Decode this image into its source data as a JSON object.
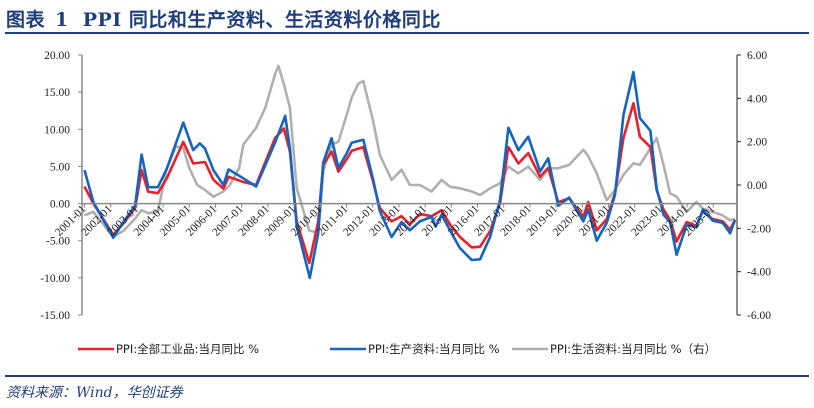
{
  "title": {
    "prefix": "图表",
    "number": "1",
    "text": "PPI 同比和生产资料、生活资料价格同比"
  },
  "source": "资料来源：Wind，华创证券",
  "colors": {
    "accent": "#1f3f7a",
    "red": "#e8202a",
    "blue": "#1565c0",
    "gray": "#b0b0b0"
  },
  "chart_data": {
    "type": "line",
    "title": "PPI 同比和生产资料、生活资料价格同比",
    "x_tick_labels": [
      "2001-01",
      "2002-01",
      "2003-01",
      "2004-01",
      "2005-01",
      "2006-01",
      "2007-01",
      "2008-01",
      "2009-01",
      "2010-01",
      "2011-01",
      "2012-01",
      "2013-01",
      "2014-01",
      "2015-01",
      "2016-01",
      "2017-01",
      "2018-01",
      "2019-01",
      "2020-01",
      "2021-01",
      "2022-01",
      "2023-01",
      "2024-01",
      "2025-01"
    ],
    "x_range": [
      2001.0,
      2025.85
    ],
    "y_left": {
      "range": [
        -15,
        20
      ],
      "ticks": [
        "20.00",
        "15.00",
        "10.00",
        "5.00",
        "0.00",
        "-5.00",
        "-10.00",
        "-15.00"
      ]
    },
    "y_right": {
      "range": [
        -6,
        6
      ],
      "ticks": [
        "6.00",
        "4.00",
        "2.00",
        "0.00",
        "-2.00",
        "-4.00",
        "-6.00"
      ]
    },
    "grid": false,
    "legend_position": "bottom",
    "series": [
      {
        "name": "PPI:全部工业品:当月同比 %",
        "axis": "left",
        "color": "#e8202a",
        "points": [
          [
            2001.0,
            2.3
          ],
          [
            2001.34,
            0.0
          ],
          [
            2002.1,
            -4.2
          ],
          [
            2002.5,
            -2.6
          ],
          [
            2002.93,
            -0.6
          ],
          [
            2003.18,
            4.5
          ],
          [
            2003.43,
            1.6
          ],
          [
            2003.8,
            1.4
          ],
          [
            2004.14,
            3.4
          ],
          [
            2004.77,
            8.3
          ],
          [
            2005.15,
            5.4
          ],
          [
            2005.6,
            5.6
          ],
          [
            2005.92,
            3.2
          ],
          [
            2006.3,
            2.0
          ],
          [
            2006.5,
            3.6
          ],
          [
            2007.06,
            2.9
          ],
          [
            2007.55,
            2.5
          ],
          [
            2008.27,
            8.8
          ],
          [
            2008.61,
            10.1
          ],
          [
            2008.84,
            7.0
          ],
          [
            2009.1,
            -2.4
          ],
          [
            2009.58,
            -8.0
          ],
          [
            2009.92,
            -2.4
          ],
          [
            2010.11,
            5.2
          ],
          [
            2010.43,
            7.0
          ],
          [
            2010.69,
            4.3
          ],
          [
            2011.01,
            6.0
          ],
          [
            2011.2,
            7.1
          ],
          [
            2011.64,
            7.6
          ],
          [
            2012.02,
            2.9
          ],
          [
            2012.27,
            -0.6
          ],
          [
            2012.72,
            -2.4
          ],
          [
            2013.1,
            -1.7
          ],
          [
            2013.42,
            -2.8
          ],
          [
            2013.8,
            -1.4
          ],
          [
            2014.25,
            -1.7
          ],
          [
            2014.63,
            -0.9
          ],
          [
            2014.95,
            -2.8
          ],
          [
            2015.33,
            -4.5
          ],
          [
            2015.78,
            -5.9
          ],
          [
            2016.1,
            -5.8
          ],
          [
            2016.48,
            -3.7
          ],
          [
            2016.86,
            0.0
          ],
          [
            2017.18,
            7.6
          ],
          [
            2017.56,
            5.4
          ],
          [
            2017.94,
            6.8
          ],
          [
            2018.39,
            3.6
          ],
          [
            2018.7,
            4.8
          ],
          [
            2019.08,
            0.2
          ],
          [
            2019.5,
            0.7
          ],
          [
            2020.04,
            -1.8
          ],
          [
            2020.23,
            0.2
          ],
          [
            2020.55,
            -3.6
          ],
          [
            2020.93,
            -2.1
          ],
          [
            2021.25,
            1.4
          ],
          [
            2021.57,
            8.8
          ],
          [
            2021.95,
            13.5
          ],
          [
            2022.2,
            9.0
          ],
          [
            2022.6,
            7.6
          ],
          [
            2022.84,
            1.8
          ],
          [
            2023.1,
            -0.8
          ],
          [
            2023.35,
            -2.2
          ],
          [
            2023.6,
            -5.1
          ],
          [
            2023.98,
            -2.5
          ],
          [
            2024.36,
            -3.0
          ],
          [
            2024.6,
            -1.0
          ],
          [
            2024.98,
            -2.1
          ],
          [
            2025.36,
            -2.4
          ],
          [
            2025.64,
            -3.5
          ],
          [
            2025.83,
            -2.2
          ]
        ]
      },
      {
        "name": "PPI:生产资料:当月同比 %",
        "axis": "left",
        "color": "#1565c0",
        "points": [
          [
            2001.0,
            4.5
          ],
          [
            2001.34,
            0.2
          ],
          [
            2002.1,
            -4.6
          ],
          [
            2002.5,
            -2.4
          ],
          [
            2002.93,
            -0.3
          ],
          [
            2003.18,
            6.6
          ],
          [
            2003.43,
            2.2
          ],
          [
            2003.8,
            2.2
          ],
          [
            2004.14,
            4.7
          ],
          [
            2004.77,
            10.9
          ],
          [
            2005.15,
            7.2
          ],
          [
            2005.4,
            8.1
          ],
          [
            2005.6,
            7.4
          ],
          [
            2005.92,
            4.5
          ],
          [
            2006.3,
            2.5
          ],
          [
            2006.5,
            4.6
          ],
          [
            2007.06,
            3.4
          ],
          [
            2007.55,
            2.3
          ],
          [
            2008.27,
            8.2
          ],
          [
            2008.66,
            11.8
          ],
          [
            2008.84,
            7.5
          ],
          [
            2009.1,
            -3.0
          ],
          [
            2009.6,
            -10.0
          ],
          [
            2009.92,
            -4.0
          ],
          [
            2010.11,
            5.5
          ],
          [
            2010.43,
            8.8
          ],
          [
            2010.69,
            4.8
          ],
          [
            2011.01,
            6.8
          ],
          [
            2011.2,
            8.2
          ],
          [
            2011.64,
            8.6
          ],
          [
            2012.02,
            3.2
          ],
          [
            2012.27,
            -1.0
          ],
          [
            2012.72,
            -4.5
          ],
          [
            2013.1,
            -2.5
          ],
          [
            2013.42,
            -3.6
          ],
          [
            2013.8,
            -2.4
          ],
          [
            2014.25,
            -1.8
          ],
          [
            2014.4,
            -3.1
          ],
          [
            2014.63,
            -1.5
          ],
          [
            2014.95,
            -3.6
          ],
          [
            2015.33,
            -6.0
          ],
          [
            2015.78,
            -7.6
          ],
          [
            2016.1,
            -7.5
          ],
          [
            2016.48,
            -4.5
          ],
          [
            2016.86,
            0.5
          ],
          [
            2017.18,
            10.2
          ],
          [
            2017.56,
            7.2
          ],
          [
            2017.94,
            9.0
          ],
          [
            2018.39,
            4.3
          ],
          [
            2018.7,
            6.1
          ],
          [
            2019.08,
            -0.3
          ],
          [
            2019.5,
            0.8
          ],
          [
            2020.04,
            -2.4
          ],
          [
            2020.23,
            -0.8
          ],
          [
            2020.55,
            -5.0
          ],
          [
            2020.93,
            -2.6
          ],
          [
            2021.25,
            1.2
          ],
          [
            2021.57,
            11.9
          ],
          [
            2021.95,
            17.7
          ],
          [
            2022.2,
            11.5
          ],
          [
            2022.6,
            9.8
          ],
          [
            2022.84,
            2.0
          ],
          [
            2023.1,
            -1.5
          ],
          [
            2023.35,
            -2.5
          ],
          [
            2023.6,
            -6.9
          ],
          [
            2023.98,
            -2.9
          ],
          [
            2024.36,
            -3.2
          ],
          [
            2024.6,
            -0.8
          ],
          [
            2024.98,
            -2.3
          ],
          [
            2025.36,
            -2.6
          ],
          [
            2025.64,
            -4.0
          ],
          [
            2025.83,
            -2.2
          ]
        ]
      },
      {
        "name": "PPI:生活资料:当月同比 %（右）",
        "axis": "right",
        "color": "#b0b0b0",
        "points": [
          [
            2001.0,
            -1.4
          ],
          [
            2001.34,
            -1.24
          ],
          [
            2002.1,
            -2.4
          ],
          [
            2002.5,
            -2.1
          ],
          [
            2002.93,
            -1.55
          ],
          [
            2003.18,
            -1.16
          ],
          [
            2003.43,
            -1.3
          ],
          [
            2003.8,
            -1.24
          ],
          [
            2004.14,
            0.78
          ],
          [
            2004.5,
            1.78
          ],
          [
            2004.77,
            1.7
          ],
          [
            2005.0,
            0.78
          ],
          [
            2005.3,
            0.0
          ],
          [
            2005.6,
            -0.23
          ],
          [
            2005.92,
            -0.54
          ],
          [
            2006.3,
            -0.3
          ],
          [
            2006.55,
            0.0
          ],
          [
            2006.9,
            0.78
          ],
          [
            2007.06,
            1.86
          ],
          [
            2007.55,
            2.64
          ],
          [
            2007.9,
            3.57
          ],
          [
            2008.27,
            5.1
          ],
          [
            2008.4,
            5.5
          ],
          [
            2008.61,
            4.65
          ],
          [
            2008.84,
            3.57
          ],
          [
            2009.1,
            -0.15
          ],
          [
            2009.58,
            -2.1
          ],
          [
            2009.92,
            -2.2
          ],
          [
            2010.11,
            0.62
          ],
          [
            2010.43,
            1.86
          ],
          [
            2010.69,
            2.0
          ],
          [
            2011.01,
            3.26
          ],
          [
            2011.2,
            4.03
          ],
          [
            2011.45,
            4.68
          ],
          [
            2011.64,
            4.8
          ],
          [
            2012.02,
            2.94
          ],
          [
            2012.27,
            1.4
          ],
          [
            2012.72,
            0.23
          ],
          [
            2013.1,
            0.7
          ],
          [
            2013.42,
            0.0
          ],
          [
            2013.8,
            0.0
          ],
          [
            2014.25,
            -0.3
          ],
          [
            2014.63,
            0.23
          ],
          [
            2014.95,
            -0.08
          ],
          [
            2015.33,
            -0.15
          ],
          [
            2015.78,
            -0.3
          ],
          [
            2016.1,
            -0.46
          ],
          [
            2016.48,
            -0.15
          ],
          [
            2016.86,
            0.08
          ],
          [
            2017.18,
            0.85
          ],
          [
            2017.56,
            0.54
          ],
          [
            2017.94,
            0.85
          ],
          [
            2018.39,
            0.23
          ],
          [
            2018.7,
            0.77
          ],
          [
            2019.08,
            0.77
          ],
          [
            2019.5,
            0.93
          ],
          [
            2020.04,
            1.63
          ],
          [
            2020.23,
            1.32
          ],
          [
            2020.55,
            0.54
          ],
          [
            2020.93,
            -0.7
          ],
          [
            2021.25,
            -0.23
          ],
          [
            2021.57,
            0.47
          ],
          [
            2021.95,
            1.0
          ],
          [
            2022.2,
            0.93
          ],
          [
            2022.6,
            1.7
          ],
          [
            2022.84,
            2.17
          ],
          [
            2023.1,
            0.93
          ],
          [
            2023.35,
            -0.39
          ],
          [
            2023.6,
            -0.54
          ],
          [
            2023.98,
            -1.24
          ],
          [
            2024.36,
            -0.78
          ],
          [
            2024.6,
            -1.09
          ],
          [
            2024.98,
            -1.24
          ],
          [
            2025.36,
            -1.4
          ],
          [
            2025.64,
            -1.63
          ],
          [
            2025.83,
            -1.55
          ]
        ]
      }
    ]
  }
}
